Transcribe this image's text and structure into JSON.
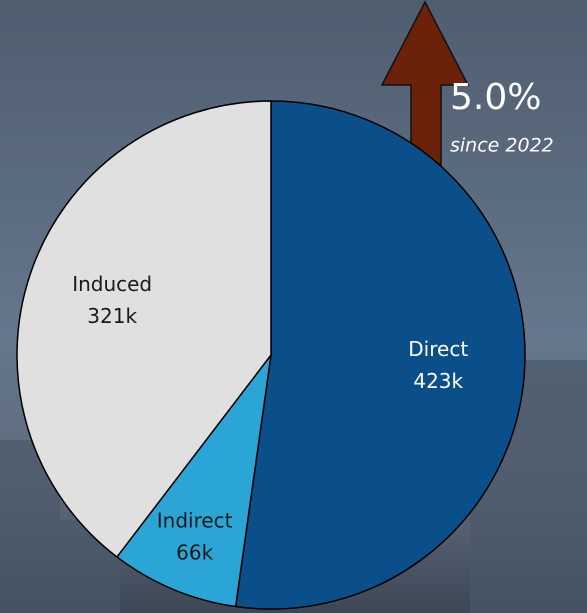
{
  "chart_data": {
    "type": "pie",
    "categories": [
      "Direct",
      "Indirect",
      "Induced"
    ],
    "values": [
      423,
      66,
      321
    ],
    "value_labels": [
      "423k",
      "66k",
      "321k"
    ],
    "colors": [
      "#0b4f8a",
      "#2ba5d5",
      "#e0e0e0"
    ],
    "label_colors": [
      "#ffffff",
      "#1a1a1a",
      "#1a1a1a"
    ],
    "annotation": "5.0%",
    "annotation_note": "since 2022",
    "arrow_color": "#6b2208"
  }
}
